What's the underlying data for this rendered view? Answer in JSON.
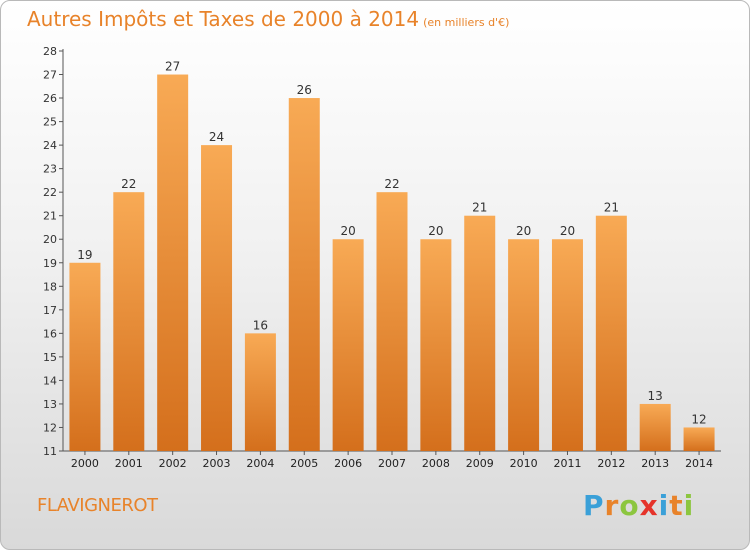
{
  "header": {
    "title": "Autres Impôts et Taxes de 2000 à 2014",
    "subtitle": "(en milliers d'€)"
  },
  "footer": {
    "commune": "FLAVIGNEROT",
    "logo": "Proxiti",
    "logo_letters": [
      {
        "ch": "P",
        "color": "#3aa0d8"
      },
      {
        "ch": "r",
        "color": "#e8832a"
      },
      {
        "ch": "o",
        "color": "#8cc63f"
      },
      {
        "ch": "x",
        "color": "#e5332a"
      },
      {
        "ch": "i",
        "color": "#3aa0d8"
      },
      {
        "ch": "t",
        "color": "#e8832a"
      },
      {
        "ch": "i",
        "color": "#8cc63f"
      }
    ]
  },
  "colors": {
    "bar_top": "#f8aa55",
    "bar_bottom": "#d46f1c",
    "accent": "#e8832a"
  },
  "chart_data": {
    "type": "bar",
    "categories": [
      "2000",
      "2001",
      "2002",
      "2003",
      "2004",
      "2005",
      "2006",
      "2007",
      "2008",
      "2009",
      "2010",
      "2011",
      "2012",
      "2013",
      "2014"
    ],
    "values": [
      19,
      22,
      27,
      24,
      16,
      26,
      20,
      22,
      20,
      21,
      20,
      20,
      21,
      13,
      12
    ],
    "ylim": [
      11,
      28
    ],
    "yticks": [
      11,
      12,
      13,
      14,
      15,
      16,
      17,
      18,
      19,
      20,
      21,
      22,
      23,
      24,
      25,
      26,
      27,
      28
    ],
    "grid": false,
    "xlabel": "",
    "ylabel": ""
  }
}
